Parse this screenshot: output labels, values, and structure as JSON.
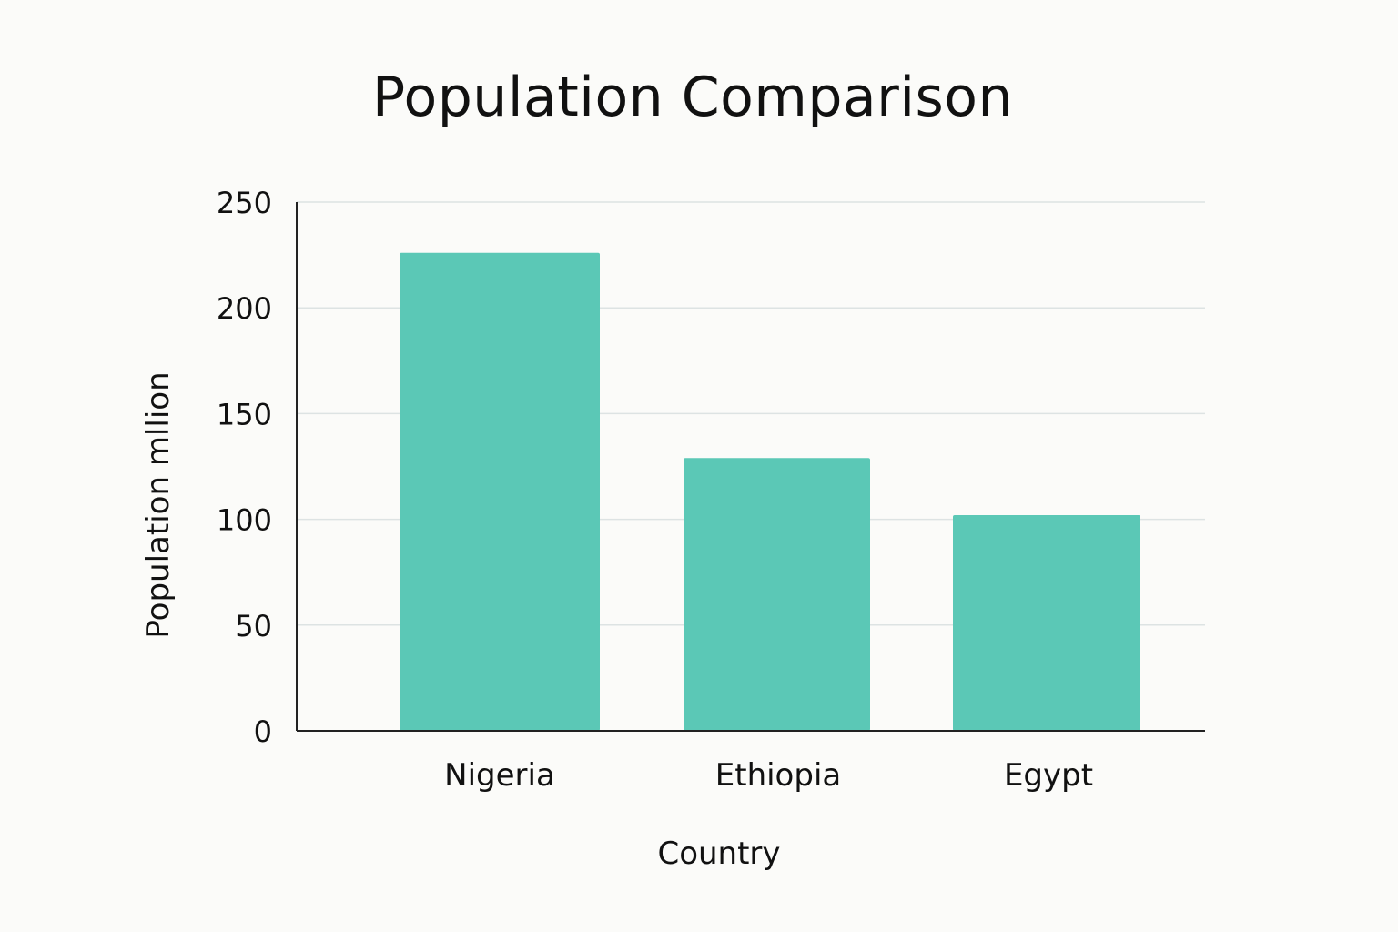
{
  "chart_data": {
    "type": "bar",
    "title": "Population Comparison",
    "xlabel": "Country",
    "ylabel": "Population mllion",
    "categories": [
      "Nigeria",
      "Ethiopia",
      "Egypt"
    ],
    "values": [
      226,
      129,
      102
    ],
    "ylim": [
      0,
      250
    ],
    "yticks": [
      0,
      50,
      100,
      150,
      200,
      250
    ],
    "grid": true,
    "bar_color": "#5bc8b6",
    "legend": "none"
  }
}
